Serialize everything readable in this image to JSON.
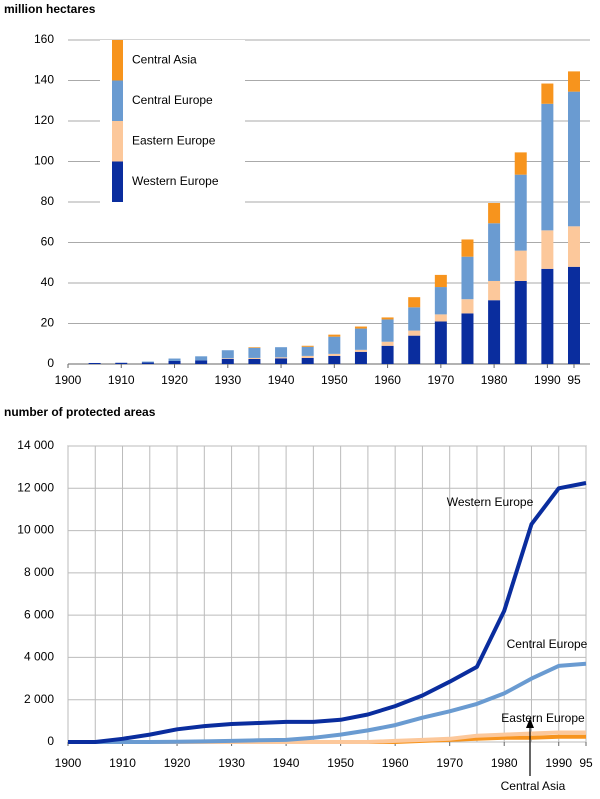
{
  "chart_data": [
    {
      "type": "stacked-bar",
      "title": "million hectares",
      "x": [
        1905,
        1910,
        1915,
        1920,
        1925,
        1930,
        1935,
        1940,
        1945,
        1950,
        1955,
        1960,
        1965,
        1970,
        1975,
        1980,
        1985,
        1990,
        1995
      ],
      "series": [
        {
          "name": "Western Europe",
          "color": "#0a2d9e",
          "values": [
            0.5,
            0.6,
            0.8,
            1.5,
            1.8,
            2.5,
            2.5,
            2.8,
            3,
            4,
            6,
            9,
            14,
            21,
            25,
            31.5,
            41,
            47,
            48
          ]
        },
        {
          "name": "Eastern Europe",
          "color": "#fcc89b",
          "values": [
            0,
            0,
            0,
            0,
            0,
            0.3,
            0.5,
            0.5,
            1,
            1,
            1,
            2,
            2.5,
            3.5,
            7,
            9.5,
            15,
            19,
            20
          ]
        },
        {
          "name": "Central Europe",
          "color": "#6a9bd1",
          "values": [
            0,
            0,
            0.4,
            1.2,
            2,
            4,
            5,
            5,
            4.5,
            8.5,
            10.5,
            11,
            11.5,
            13.5,
            21,
            28.5,
            37.5,
            62.5,
            66.5
          ]
        },
        {
          "name": "Central Asia",
          "color": "#f7941d",
          "values": [
            0,
            0,
            0,
            0,
            0,
            0,
            0.3,
            0,
            0.5,
            1,
            1,
            1,
            5,
            6,
            8.5,
            10,
            11,
            10,
            10
          ]
        }
      ],
      "xlim": [
        1900,
        1995
      ],
      "xticks": [
        1900,
        1910,
        1920,
        1930,
        1940,
        1950,
        1960,
        1970,
        1980,
        1990,
        {
          "value": 1995,
          "label": "95"
        }
      ],
      "ylim": [
        0,
        160
      ],
      "yticks": [
        0,
        20,
        40,
        60,
        80,
        100,
        120,
        140,
        160
      ],
      "grid": true,
      "legend": "top-left"
    },
    {
      "type": "line",
      "title": "number of protected areas",
      "x": [
        1900,
        1905,
        1910,
        1915,
        1920,
        1925,
        1930,
        1935,
        1940,
        1945,
        1950,
        1955,
        1960,
        1965,
        1970,
        1975,
        1980,
        1985,
        1990,
        1995
      ],
      "series": [
        {
          "name": "Western Europe",
          "color": "#0a2d9e",
          "values": [
            0,
            0,
            150,
            350,
            600,
            750,
            850,
            900,
            950,
            950,
            1050,
            1300,
            1700,
            2200,
            2850,
            3550,
            6200,
            10300,
            12000,
            12250
          ]
        },
        {
          "name": "Central Europe",
          "color": "#6a9bd1",
          "values": [
            0,
            0,
            0,
            0,
            10,
            30,
            50,
            80,
            100,
            200,
            350,
            550,
            800,
            1150,
            1450,
            1800,
            2300,
            3000,
            3600,
            3700
          ]
        },
        {
          "name": "Eastern Europe",
          "color": "#fcc89b",
          "values": [
            0,
            0,
            0,
            0,
            0,
            0,
            0,
            0,
            0,
            0,
            0,
            0,
            50,
            100,
            150,
            300,
            350,
            400,
            450,
            450
          ]
        },
        {
          "name": "Central Asia",
          "color": "#f7941d",
          "values": [
            0,
            0,
            0,
            0,
            0,
            0,
            0,
            0,
            0,
            0,
            0,
            0,
            0,
            50,
            100,
            150,
            200,
            200,
            250,
            250
          ]
        }
      ],
      "xlim": [
        1900,
        1995
      ],
      "xticks": [
        1900,
        1910,
        1920,
        1930,
        1940,
        1950,
        1960,
        1970,
        1980,
        1990,
        {
          "value": 1995,
          "label": "95"
        }
      ],
      "ylim": [
        0,
        14000
      ],
      "yticks": [
        0,
        {
          "value": 2000,
          "label": "2 000"
        },
        {
          "value": 4000,
          "label": "4 000"
        },
        {
          "value": 6000,
          "label": "6 000"
        },
        {
          "value": 8000,
          "label": "8 000"
        },
        {
          "value": 10000,
          "label": "10 000"
        },
        {
          "value": 12000,
          "label": "12 000"
        },
        {
          "value": 14000,
          "label": "14 000"
        }
      ],
      "grid": true
    }
  ]
}
